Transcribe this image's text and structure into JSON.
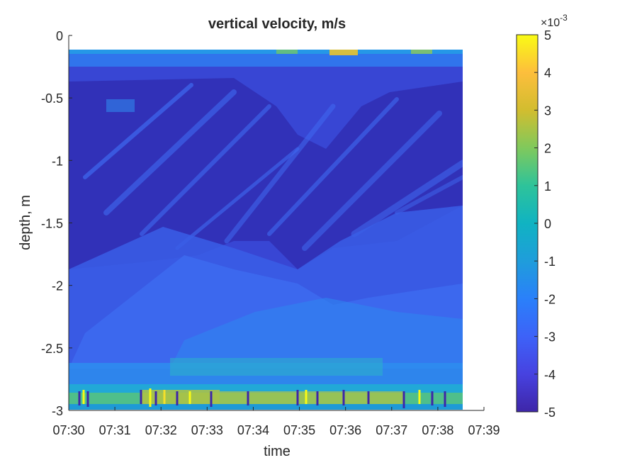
{
  "chart_data": {
    "type": "heatmap",
    "title": "vertical velocity, m/s",
    "xlabel": "time",
    "ylabel": "depth, m",
    "x_tick_labels": [
      "07:30",
      "07:31",
      "07:32",
      "07:33",
      "07:34",
      "07:35",
      "07:36",
      "07:37",
      "07:38",
      "07:39"
    ],
    "x_range": [
      "07:30",
      "07:39"
    ],
    "data_time_range": [
      "07:30",
      "07:38.5"
    ],
    "y_ticks": [
      0,
      -0.5,
      -1,
      -1.5,
      -2,
      -2.5,
      -3
    ],
    "y_tick_labels": [
      "0",
      "-0.5",
      "-1",
      "-1.5",
      "-2",
      "-2.5",
      "-3"
    ],
    "ylim": [
      -3,
      0
    ],
    "data_depth_range": [
      -2.95,
      -0.12
    ],
    "colorbar": {
      "min": -5,
      "max": 5,
      "ticks": [
        5,
        4,
        3,
        2,
        1,
        0,
        -1,
        -2,
        -3,
        -4,
        -5
      ],
      "tick_labels": [
        "5",
        "4",
        "3",
        "2",
        "1",
        "0",
        "-1",
        "-2",
        "-3",
        "-4",
        "-5"
      ],
      "multiplier_label": "×10",
      "multiplier_exponent": "-3",
      "colormap": "parula"
    },
    "grid": false,
    "dominant_value_range_e3": [
      -5,
      -2
    ],
    "notes_visible": "bands of higher (near zero to positive) velocity near surface (~-0.1 m) and near bottom (~-2.85 m); diagonal stripes of less-negative values descending from upper-left region"
  }
}
